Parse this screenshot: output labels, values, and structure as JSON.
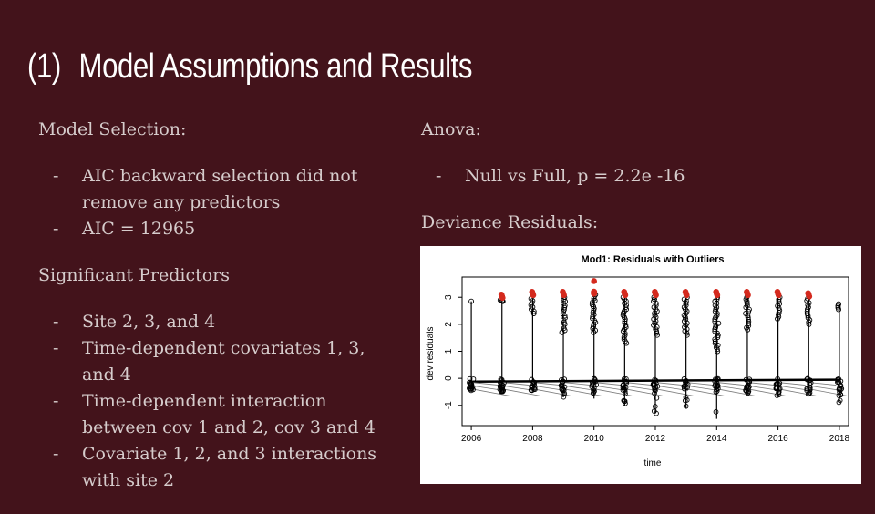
{
  "slide": {
    "title_num": "(1)",
    "title_text": "Model Assumptions and Results"
  },
  "left": {
    "model_selection_heading": "Model Selection:",
    "model_selection_items": [
      "AIC backward selection did not remove any predictors",
      "AIC = 12965"
    ],
    "significant_heading": "Significant Predictors",
    "significant_items": [
      "Site 2, 3, and 4",
      "Time-dependent covariates 1, 3, and 4",
      "Time-dependent interaction between cov 1 and 2, cov 3 and 4",
      "Covariate 1, 2, and 3 interactions with site 2"
    ]
  },
  "right": {
    "anova_heading": "Anova:",
    "anova_items": [
      "Null vs Full, p = 2.2e -16"
    ],
    "deviance_heading": "Deviance Residuals:"
  },
  "bullet_char": "-",
  "colors": {
    "background": "#43131b",
    "text": "#d6cccc",
    "title": "#ffffff",
    "outlier": "#d42a1e"
  },
  "chart_data": {
    "type": "scatter",
    "title": "Mod1: Residuals with Outliers",
    "xlabel": "time",
    "ylabel": "dev residuals",
    "xlim": [
      2005.7,
      2018.3
    ],
    "ylim": [
      -1.75,
      3.75
    ],
    "x_ticks": [
      2006,
      2008,
      2010,
      2012,
      2014,
      2016,
      2018
    ],
    "y_ticks": [
      -1,
      0,
      1,
      2,
      3
    ],
    "grid": false,
    "x": [
      2006,
      2007,
      2008,
      2009,
      2010,
      2011,
      2012,
      2013,
      2014,
      2015,
      2016,
      2017,
      2018
    ],
    "residual_max": [
      2.85,
      2.9,
      2.95,
      3.0,
      3.1,
      3.0,
      3.0,
      3.0,
      3.0,
      3.0,
      3.0,
      2.95,
      2.75
    ],
    "residual_min": [
      -0.25,
      -0.5,
      -0.3,
      -0.7,
      -0.75,
      -1.0,
      -1.3,
      -1.1,
      -1.5,
      -0.6,
      -0.65,
      -0.6,
      -0.9
    ],
    "dense_above_from": [
      null,
      2.85,
      2.4,
      1.7,
      1.7,
      1.3,
      1.6,
      1.6,
      1.0,
      1.8,
      2.2,
      2.0,
      2.55
    ],
    "outlier_values": [
      null,
      3.1,
      3.2,
      3.2,
      3.6,
      3.2,
      3.2,
      3.2,
      3.2,
      3.2,
      3.2,
      3.15,
      null
    ]
  }
}
